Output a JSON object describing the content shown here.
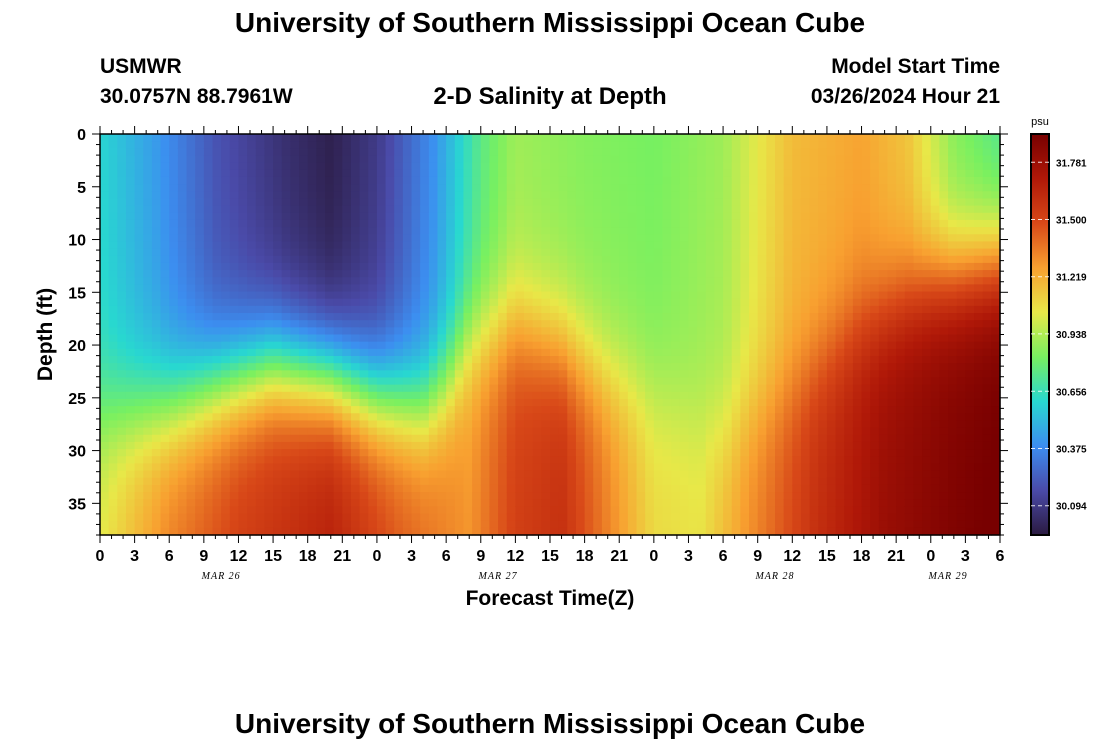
{
  "header": {
    "title": "University of Southern Mississippi Ocean Cube",
    "station": "USMWR",
    "coordinates": "30.0757N  88.7961W",
    "plot_title": "2-D Salinity at Depth",
    "start_label": "Model Start Time",
    "start_value": "03/26/2024 Hour 21"
  },
  "footer": {
    "title": "University of Southern Mississippi Ocean Cube"
  },
  "colors": {
    "colormap": [
      "#2a1a40",
      "#4a4aa8",
      "#3c8ef0",
      "#28d8d0",
      "#78f060",
      "#e8e848",
      "#f8a030",
      "#d84818",
      "#b01808",
      "#780000"
    ]
  },
  "chart_data": {
    "type": "heatmap",
    "xlabel": "Forecast Time(Z)",
    "ylabel": "Depth (ft)",
    "x_tick_labels": [
      "0",
      "3",
      "6",
      "9",
      "12",
      "15",
      "18",
      "21",
      "0",
      "3",
      "6",
      "9",
      "12",
      "15",
      "18",
      "21",
      "0",
      "3",
      "6",
      "9",
      "12",
      "15",
      "18",
      "21",
      "0",
      "3",
      "6"
    ],
    "x_day_labels": [
      {
        "label": "MAR 26",
        "hour": 10.5
      },
      {
        "label": "MAR 27",
        "hour": 34.5
      },
      {
        "label": "MAR 28",
        "hour": 58.5
      },
      {
        "label": "MAR 29",
        "hour": 73.5
      }
    ],
    "xlim_hours": [
      0,
      78
    ],
    "y_ticks": [
      0,
      5,
      10,
      15,
      20,
      25,
      30,
      35
    ],
    "ylim": [
      0,
      38
    ],
    "y_inverted": true,
    "colorbar": {
      "unit": "psu",
      "tick_labels": [
        "31.781",
        "31.500",
        "31.219",
        "30.938",
        "30.656",
        "30.375",
        "30.094"
      ],
      "tick_values": [
        31.781,
        31.5,
        31.219,
        30.938,
        30.656,
        30.375,
        30.094
      ],
      "range": [
        29.95,
        31.92
      ]
    },
    "surface_salinity": [
      [
        0,
        30.6
      ],
      [
        5,
        30.42
      ],
      [
        10,
        30.2
      ],
      [
        16,
        30.05
      ],
      [
        20,
        29.98
      ],
      [
        24,
        30.1
      ],
      [
        29,
        30.4
      ],
      [
        33,
        30.75
      ],
      [
        36,
        30.9
      ],
      [
        42,
        30.85
      ],
      [
        48,
        30.82
      ],
      [
        54,
        30.9
      ],
      [
        60,
        31.18
      ],
      [
        66,
        31.25
      ],
      [
        70,
        31.15
      ],
      [
        74,
        30.85
      ],
      [
        78,
        30.72
      ]
    ],
    "bottom_salinity": [
      [
        0,
        31.0
      ],
      [
        6,
        31.3
      ],
      [
        12,
        31.48
      ],
      [
        20,
        31.62
      ],
      [
        26,
        31.4
      ],
      [
        32,
        31.25
      ],
      [
        36,
        31.48
      ],
      [
        40,
        31.55
      ],
      [
        44,
        31.3
      ],
      [
        48,
        31.05
      ],
      [
        52,
        31.02
      ],
      [
        56,
        31.25
      ],
      [
        62,
        31.55
      ],
      [
        68,
        31.75
      ],
      [
        74,
        31.85
      ],
      [
        78,
        31.9
      ]
    ],
    "halocline_depth_ft": [
      [
        0,
        27
      ],
      [
        6,
        26
      ],
      [
        10,
        24
      ],
      [
        15,
        22
      ],
      [
        20,
        23
      ],
      [
        24,
        25
      ],
      [
        28,
        26
      ],
      [
        30,
        24
      ],
      [
        32,
        20
      ],
      [
        36,
        18
      ],
      [
        40,
        20
      ],
      [
        44,
        23
      ],
      [
        48,
        25
      ],
      [
        54,
        28
      ],
      [
        60,
        24
      ],
      [
        66,
        18
      ],
      [
        72,
        14
      ],
      [
        78,
        12
      ]
    ],
    "halocline_width_ft": 3.2
  }
}
